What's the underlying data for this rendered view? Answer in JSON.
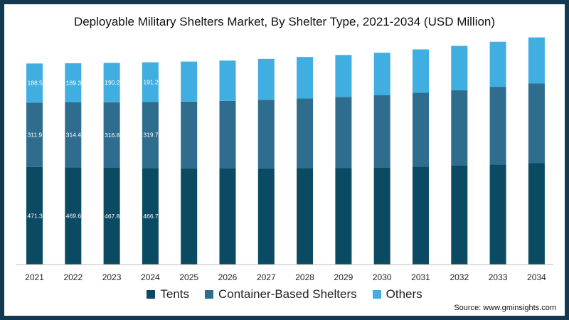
{
  "title": "Deployable Military Shelters Market, By Shelter Type, 2021-2034 (USD Million)",
  "source": "Source: www.gminsights.com",
  "legend": [
    {
      "label": "Tents",
      "color": "#0b4a63"
    },
    {
      "label": "Container-Based Shelters",
      "color": "#2f6d8f"
    },
    {
      "label": "Others",
      "color": "#40aee0"
    }
  ],
  "chart_data": {
    "type": "bar",
    "stacked": true,
    "title": "Deployable Military Shelters Market, By Shelter Type, 2021-2034 (USD Million)",
    "categories": [
      "2021",
      "2022",
      "2023",
      "2024",
      "2025",
      "2026",
      "2027",
      "2028",
      "2029",
      "2030",
      "2031",
      "2032",
      "2033",
      "2034"
    ],
    "series": [
      {
        "name": "Tents",
        "color": "#0b4a63",
        "values": [
          471.3,
          469.6,
          467.8,
          466.7,
          465,
          464,
          465,
          466,
          467,
          469,
          473,
          478,
          484,
          490
        ],
        "labels": [
          "471.3",
          "469.6",
          "467.8",
          "466.7",
          "",
          "",
          "",
          "",
          "",
          "",
          "",
          "",
          "",
          ""
        ]
      },
      {
        "name": "Container-Based Shelters",
        "color": "#2f6d8f",
        "values": [
          311.9,
          314.4,
          316.8,
          319.7,
          323,
          327,
          331,
          337,
          343,
          349,
          357,
          365,
          375,
          385
        ],
        "labels": [
          "311.9",
          "314.4",
          "316.8",
          "319.7",
          "",
          "",
          "",
          "",
          "",
          "",
          "",
          "",
          "",
          ""
        ]
      },
      {
        "name": "Others",
        "color": "#40aee0",
        "values": [
          188.5,
          189.3,
          190.2,
          191.2,
          193,
          195,
          198,
          200,
          203,
          206,
          210,
          214,
          218,
          223
        ],
        "labels": [
          "188.5",
          "189.3",
          "190.2",
          "191.2",
          "",
          "",
          "",
          "",
          "",
          "",
          "",
          "",
          "",
          ""
        ]
      }
    ],
    "ylim": [
      0,
      1100
    ],
    "grid": false,
    "legend_position": "bottom"
  }
}
